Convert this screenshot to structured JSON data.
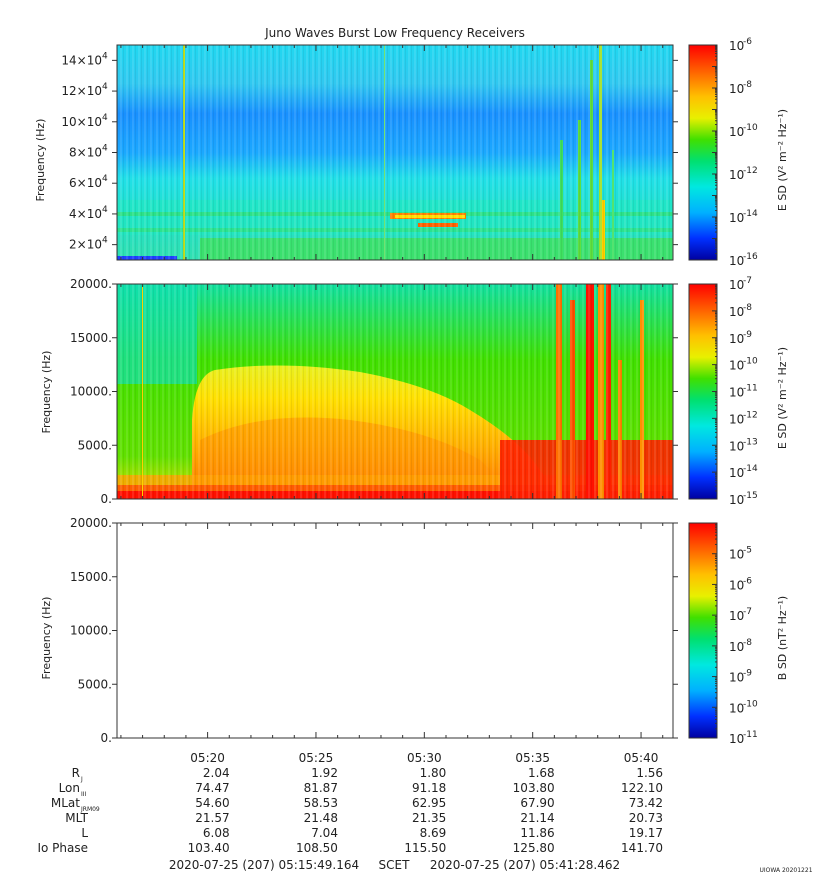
{
  "chart_data": {
    "title": "Juno Waves Burst Low Frequency Receivers",
    "type": "heatmap",
    "panels": [
      {
        "type": "heatmap",
        "ylabel": "Frequency (Hz)",
        "ylim": [
          10000,
          150000
        ],
        "yticks": [
          20000,
          40000,
          60000,
          80000,
          100000,
          120000,
          140000
        ],
        "ytick_labels": [
          "2×10",
          "4×10",
          "6×10",
          "8×10",
          "10×10",
          "12×10",
          "14×10"
        ],
        "ytick_exponent": "4",
        "colorbar": {
          "label": "E SD (V² m⁻² Hz⁻¹)",
          "scale": "log",
          "range": [
            "1e-16",
            "1e-6"
          ],
          "tick_exponents": [
            "-16",
            "-14",
            "-12",
            "-10",
            "-8",
            "-6"
          ]
        }
      },
      {
        "type": "heatmap",
        "ylabel": "Frequency (Hz)",
        "ylim": [
          0,
          20000
        ],
        "yticks": [
          0,
          5000,
          10000,
          15000,
          20000
        ],
        "ytick_labels": [
          "0.",
          "5000.",
          "10000.",
          "15000.",
          "20000."
        ],
        "colorbar": {
          "label": "E SD (V² m⁻² Hz⁻¹)",
          "scale": "log",
          "range": [
            "1e-15",
            "1e-7"
          ],
          "tick_exponents": [
            "-15",
            "-14",
            "-13",
            "-12",
            "-11",
            "-10",
            "-9",
            "-8",
            "-7"
          ]
        }
      },
      {
        "type": "heatmap",
        "ylabel": "Frequency (Hz)",
        "ylim": [
          0,
          20000
        ],
        "yticks": [
          0,
          5000,
          10000,
          15000,
          20000
        ],
        "ytick_labels": [
          "0.",
          "5000.",
          "10000.",
          "15000.",
          "20000."
        ],
        "empty": true,
        "colorbar": {
          "label": "B SD (nT² Hz⁻¹)",
          "scale": "log",
          "range": [
            "1e-11",
            "1e-4"
          ],
          "tick_exponents": [
            "-11",
            "-10",
            "-9",
            "-8",
            "-7",
            "-6",
            "-5"
          ]
        }
      }
    ],
    "x_range": [
      "05:15:49.164",
      "05:41:28.462"
    ],
    "x_ticks": [
      "05:20",
      "05:25",
      "05:30",
      "05:35",
      "05:40"
    ],
    "ephemeris": {
      "rows": [
        {
          "label": "R",
          "sub": "J",
          "values": [
            "2.04",
            "1.92",
            "1.80",
            "1.68",
            "1.56"
          ]
        },
        {
          "label": "Lon",
          "sub": "III",
          "values": [
            "74.47",
            "81.87",
            "91.18",
            "103.80",
            "122.10"
          ]
        },
        {
          "label": "MLat",
          "sub": "JRM09",
          "values": [
            "54.60",
            "58.53",
            "62.95",
            "67.90",
            "73.42"
          ]
        },
        {
          "label": "MLT",
          "sub": "",
          "values": [
            "21.57",
            "21.48",
            "21.35",
            "21.14",
            "20.73"
          ]
        },
        {
          "label": "L",
          "sub": "",
          "values": [
            "6.08",
            "7.04",
            "8.69",
            "11.86",
            "19.17"
          ]
        },
        {
          "label": "Io Phase",
          "sub": "",
          "values": [
            "103.40",
            "108.50",
            "115.50",
            "125.80",
            "141.70"
          ]
        }
      ]
    },
    "time_footer": {
      "start": "2020-07-25 (207) 05:15:49.164",
      "frame": "SCET",
      "end": "2020-07-25 (207) 05:41:28.462"
    },
    "stamp": "UIOWA 20201221"
  }
}
